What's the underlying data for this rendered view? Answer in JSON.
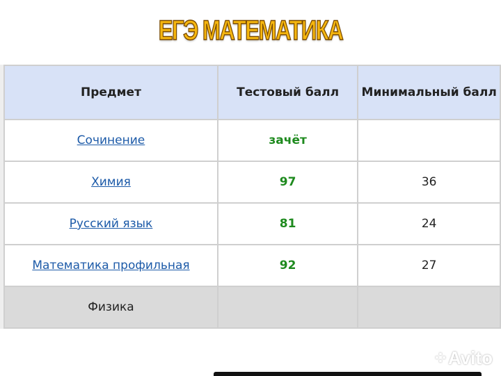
{
  "title": "ЕГЭ МАТЕМАТИКА",
  "table": {
    "headers": [
      "Предмет",
      "Тестовый балл",
      "Минимальный балл"
    ],
    "rows": [
      {
        "subject": "Сочинение",
        "score": "зачёт",
        "min": ""
      },
      {
        "subject": "Химия",
        "score": "97",
        "min": "36"
      },
      {
        "subject": "Русский язык",
        "score": "81",
        "min": "24"
      },
      {
        "subject": "Математика профильная",
        "score": "92",
        "min": "27"
      }
    ],
    "last_row": {
      "subject": "Физика"
    }
  },
  "watermark": "Avito"
}
